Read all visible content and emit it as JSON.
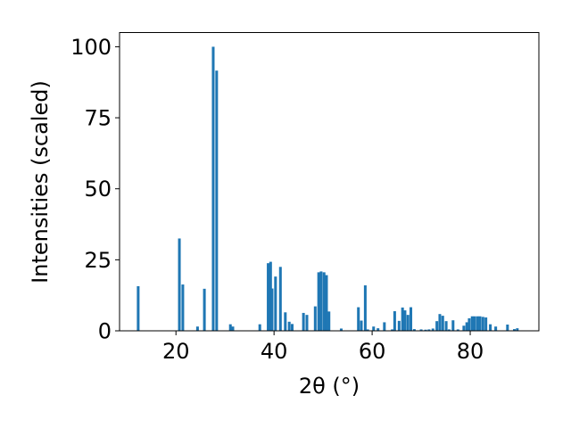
{
  "chart_data": {
    "type": "bar",
    "title": "",
    "xlabel": "2θ (°)",
    "ylabel": "Intensities (scaled)",
    "xlim": [
      8.5,
      94
    ],
    "ylim": [
      0,
      105
    ],
    "grid": false,
    "legend": "none",
    "bar_color": "#1f77b4",
    "bar_width": 0.55,
    "x_ticks": [
      20,
      40,
      60,
      80
    ],
    "y_ticks": [
      0,
      25,
      50,
      75,
      100
    ],
    "x": [
      12.3,
      20.7,
      21.4,
      24.4,
      25.8,
      27.6,
      28.3,
      31.1,
      31.6,
      37.1,
      38.8,
      39.3,
      39.6,
      40.3,
      41.3,
      42.3,
      43.1,
      43.7,
      46.0,
      46.7,
      48.4,
      49.1,
      49.6,
      50.2,
      50.7,
      51.2,
      53.7,
      57.2,
      57.8,
      58.6,
      59.1,
      60.3,
      61.2,
      62.5,
      64.1,
      64.6,
      65.5,
      66.2,
      66.7,
      67.3,
      67.9,
      68.6,
      70.0,
      70.9,
      71.6,
      72.4,
      73.2,
      73.8,
      74.4,
      75.1,
      75.7,
      76.5,
      77.5,
      78.7,
      79.3,
      79.8,
      80.4,
      80.9,
      81.5,
      82.0,
      82.6,
      83.2,
      84.1,
      85.2,
      87.6,
      89.0,
      89.6
    ],
    "values": [
      15.7,
      32.5,
      16.3,
      1.5,
      14.8,
      100.0,
      91.6,
      2.3,
      1.5,
      2.3,
      23.8,
      24.3,
      14.9,
      19.1,
      22.5,
      6.5,
      3.2,
      2.4,
      6.3,
      5.6,
      8.6,
      20.6,
      20.9,
      20.6,
      19.6,
      6.8,
      0.8,
      8.3,
      3.6,
      16.0,
      0.5,
      1.5,
      0.9,
      3.0,
      0.5,
      6.9,
      3.5,
      8.2,
      7.2,
      5.6,
      8.3,
      0.6,
      0.5,
      0.4,
      0.5,
      0.8,
      3.4,
      5.9,
      5.3,
      3.4,
      0.5,
      3.7,
      0.5,
      1.8,
      3.0,
      4.4,
      5.1,
      5.1,
      5.1,
      5.1,
      4.9,
      4.7,
      2.3,
      1.5,
      2.2,
      0.6,
      0.9
    ]
  }
}
